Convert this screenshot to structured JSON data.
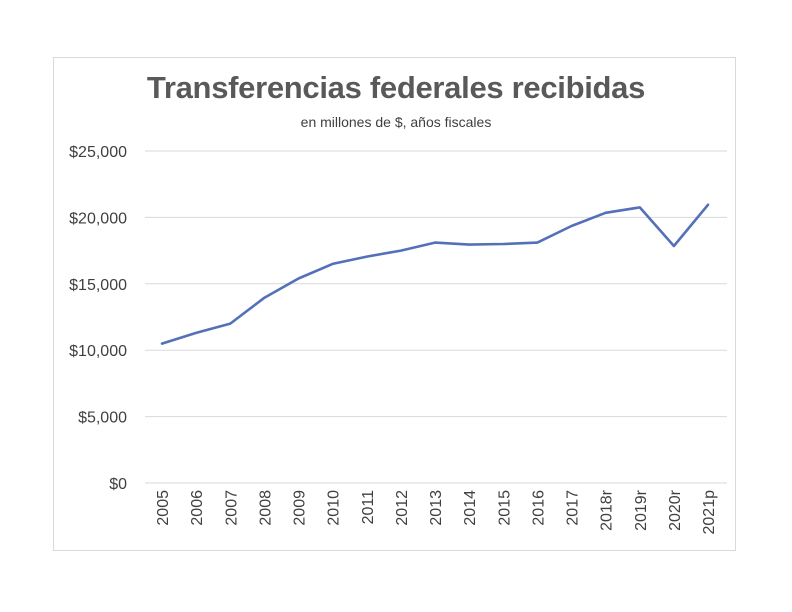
{
  "chart_data": {
    "type": "line",
    "title": "Transferencias federales recibidas",
    "subtitle": "en millones de $, años fiscales",
    "xlabel": "",
    "ylabel": "",
    "categories": [
      "2005",
      "2006",
      "2007",
      "2008",
      "2009",
      "2010",
      "2011",
      "2012",
      "2013",
      "2014",
      "2015",
      "2016",
      "2017",
      "2018r",
      "2019r",
      "2020r",
      "2021p"
    ],
    "series": [
      {
        "values": [
          10500,
          11300,
          12000,
          13950,
          15400,
          16500,
          17050,
          17500,
          18100,
          17950,
          18000,
          18100,
          19350,
          20350,
          20750,
          17850,
          20950
        ],
        "color": "#5470b8"
      }
    ],
    "ylim": [
      0,
      25000
    ],
    "yticks": [
      0,
      5000,
      10000,
      15000,
      20000,
      25000
    ],
    "ytick_labels": [
      "$0",
      "$5,000",
      "$10,000",
      "$15,000",
      "$20,000",
      "$25,000"
    ],
    "grid": true,
    "legend": "none",
    "colors": {
      "gridline": "#d9d9d9",
      "axis_text": "#404040",
      "title": "#595959"
    }
  }
}
